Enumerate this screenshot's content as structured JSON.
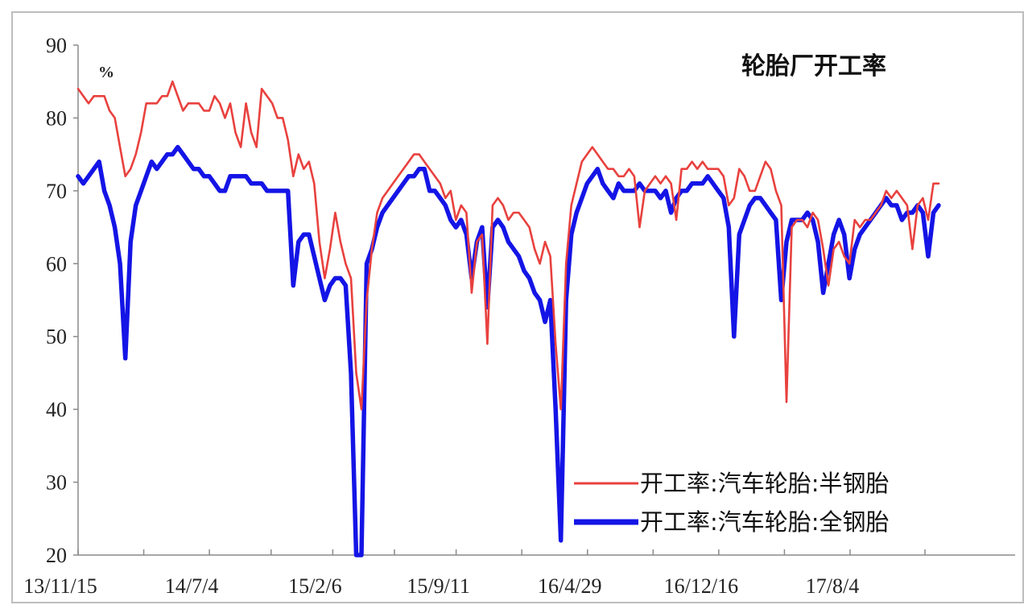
{
  "chart_data": {
    "type": "line",
    "title": "轮胎厂开工率",
    "ylabel": "%",
    "xlabel": "",
    "ylim": [
      20,
      90
    ],
    "yticks": [
      20,
      30,
      40,
      50,
      60,
      70,
      80,
      90
    ],
    "x_tick_labels": [
      "13/11/15",
      "14/7/4",
      "15/2/6",
      "15/9/11",
      "16/4/29",
      "16/12/16",
      "17/8/4"
    ],
    "x_tick_weeks": [
      0,
      33,
      64,
      95,
      128,
      161,
      194
    ],
    "grid": false,
    "legend_position": "bottom-right",
    "series": [
      {
        "name": "开工率:汽车轮胎:半钢胎",
        "color": "#e8413e",
        "points": [
          [
            0,
            84
          ],
          [
            1,
            83
          ],
          [
            2,
            82
          ],
          [
            3,
            83
          ],
          [
            4,
            83
          ],
          [
            5,
            83
          ],
          [
            6,
            81
          ],
          [
            7,
            80
          ],
          [
            8,
            76
          ],
          [
            9,
            72
          ],
          [
            10,
            73
          ],
          [
            11,
            75
          ],
          [
            12,
            78
          ],
          [
            13,
            82
          ],
          [
            14,
            82
          ],
          [
            15,
            82
          ],
          [
            16,
            83
          ],
          [
            17,
            83
          ],
          [
            18,
            85
          ],
          [
            19,
            83
          ],
          [
            20,
            81
          ],
          [
            21,
            82
          ],
          [
            22,
            82
          ],
          [
            23,
            82
          ],
          [
            24,
            81
          ],
          [
            25,
            81
          ],
          [
            26,
            83
          ],
          [
            27,
            82
          ],
          [
            28,
            80
          ],
          [
            29,
            82
          ],
          [
            30,
            78
          ],
          [
            31,
            76
          ],
          [
            32,
            82
          ],
          [
            33,
            78
          ],
          [
            34,
            76
          ],
          [
            35,
            84
          ],
          [
            36,
            83
          ],
          [
            37,
            82
          ],
          [
            38,
            80
          ],
          [
            39,
            80
          ],
          [
            40,
            77
          ],
          [
            41,
            72
          ],
          [
            42,
            75
          ],
          [
            43,
            73
          ],
          [
            44,
            74
          ],
          [
            45,
            71
          ],
          [
            46,
            63
          ],
          [
            47,
            58
          ],
          [
            48,
            62
          ],
          [
            49,
            67
          ],
          [
            50,
            63
          ],
          [
            51,
            60
          ],
          [
            52,
            58
          ],
          [
            53,
            45
          ],
          [
            54,
            40
          ],
          [
            55,
            55
          ],
          [
            56,
            62
          ],
          [
            57,
            67
          ],
          [
            58,
            69
          ],
          [
            59,
            70
          ],
          [
            60,
            71
          ],
          [
            61,
            72
          ],
          [
            62,
            73
          ],
          [
            63,
            74
          ],
          [
            64,
            75
          ],
          [
            65,
            75
          ],
          [
            66,
            74
          ],
          [
            67,
            73
          ],
          [
            68,
            72
          ],
          [
            69,
            71
          ],
          [
            70,
            69
          ],
          [
            71,
            70
          ],
          [
            72,
            66
          ],
          [
            73,
            68
          ],
          [
            74,
            67
          ],
          [
            75,
            56
          ],
          [
            76,
            63
          ],
          [
            77,
            64
          ],
          [
            78,
            49
          ],
          [
            79,
            68
          ],
          [
            80,
            69
          ],
          [
            81,
            68
          ],
          [
            82,
            66
          ],
          [
            83,
            67
          ],
          [
            84,
            67
          ],
          [
            85,
            66
          ],
          [
            86,
            65
          ],
          [
            87,
            62
          ],
          [
            88,
            60
          ],
          [
            89,
            63
          ],
          [
            90,
            61
          ],
          [
            91,
            49
          ],
          [
            92,
            40
          ],
          [
            93,
            60
          ],
          [
            94,
            68
          ],
          [
            95,
            71
          ],
          [
            96,
            74
          ],
          [
            97,
            75
          ],
          [
            98,
            76
          ],
          [
            99,
            75
          ],
          [
            100,
            74
          ],
          [
            101,
            73
          ],
          [
            102,
            73
          ],
          [
            103,
            72
          ],
          [
            104,
            72
          ],
          [
            105,
            73
          ],
          [
            106,
            72
          ],
          [
            107,
            65
          ],
          [
            108,
            70
          ],
          [
            109,
            71
          ],
          [
            110,
            72
          ],
          [
            111,
            71
          ],
          [
            112,
            72
          ],
          [
            113,
            71
          ],
          [
            114,
            66
          ],
          [
            115,
            73
          ],
          [
            116,
            73
          ],
          [
            117,
            74
          ],
          [
            118,
            73
          ],
          [
            119,
            74
          ],
          [
            120,
            73
          ],
          [
            121,
            73
          ],
          [
            122,
            73
          ],
          [
            123,
            72
          ],
          [
            124,
            68
          ],
          [
            125,
            69
          ],
          [
            126,
            73
          ],
          [
            127,
            72
          ],
          [
            128,
            70
          ],
          [
            129,
            70
          ],
          [
            130,
            72
          ],
          [
            131,
            74
          ],
          [
            132,
            73
          ],
          [
            133,
            70
          ],
          [
            134,
            68
          ],
          [
            135,
            41
          ],
          [
            136,
            65
          ],
          [
            137,
            66
          ],
          [
            138,
            66
          ],
          [
            139,
            65
          ],
          [
            140,
            67
          ],
          [
            141,
            66
          ],
          [
            142,
            62
          ],
          [
            143,
            57
          ],
          [
            144,
            62
          ],
          [
            145,
            63
          ],
          [
            146,
            61
          ],
          [
            147,
            60
          ],
          [
            148,
            66
          ],
          [
            149,
            65
          ],
          [
            150,
            66
          ],
          [
            151,
            66
          ],
          [
            152,
            67
          ],
          [
            153,
            68
          ],
          [
            154,
            70
          ],
          [
            155,
            69
          ],
          [
            156,
            70
          ],
          [
            157,
            69
          ],
          [
            158,
            68
          ],
          [
            159,
            62
          ],
          [
            160,
            68
          ],
          [
            161,
            69
          ],
          [
            162,
            66
          ],
          [
            163,
            71
          ],
          [
            164,
            71
          ]
        ]
      },
      {
        "name": "开工率:汽车轮胎:全钢胎",
        "color": "#1414e6",
        "points": [
          [
            0,
            72
          ],
          [
            1,
            71
          ],
          [
            2,
            72
          ],
          [
            3,
            73
          ],
          [
            4,
            74
          ],
          [
            5,
            70
          ],
          [
            6,
            68
          ],
          [
            7,
            65
          ],
          [
            8,
            60
          ],
          [
            9,
            47
          ],
          [
            10,
            63
          ],
          [
            11,
            68
          ],
          [
            12,
            70
          ],
          [
            13,
            72
          ],
          [
            14,
            74
          ],
          [
            15,
            73
          ],
          [
            16,
            74
          ],
          [
            17,
            75
          ],
          [
            18,
            75
          ],
          [
            19,
            76
          ],
          [
            20,
            75
          ],
          [
            21,
            74
          ],
          [
            22,
            73
          ],
          [
            23,
            73
          ],
          [
            24,
            72
          ],
          [
            25,
            72
          ],
          [
            26,
            71
          ],
          [
            27,
            70
          ],
          [
            28,
            70
          ],
          [
            29,
            72
          ],
          [
            30,
            72
          ],
          [
            31,
            72
          ],
          [
            32,
            72
          ],
          [
            33,
            71
          ],
          [
            34,
            71
          ],
          [
            35,
            71
          ],
          [
            36,
            70
          ],
          [
            37,
            70
          ],
          [
            38,
            70
          ],
          [
            39,
            70
          ],
          [
            40,
            70
          ],
          [
            41,
            57
          ],
          [
            42,
            63
          ],
          [
            43,
            64
          ],
          [
            44,
            64
          ],
          [
            45,
            61
          ],
          [
            46,
            58
          ],
          [
            47,
            55
          ],
          [
            48,
            57
          ],
          [
            49,
            58
          ],
          [
            50,
            58
          ],
          [
            51,
            57
          ],
          [
            52,
            45
          ],
          [
            53,
            20
          ],
          [
            54,
            20
          ],
          [
            55,
            60
          ],
          [
            56,
            62
          ],
          [
            57,
            65
          ],
          [
            58,
            67
          ],
          [
            59,
            68
          ],
          [
            60,
            69
          ],
          [
            61,
            70
          ],
          [
            62,
            71
          ],
          [
            63,
            72
          ],
          [
            64,
            72
          ],
          [
            65,
            73
          ],
          [
            66,
            73
          ],
          [
            67,
            70
          ],
          [
            68,
            70
          ],
          [
            69,
            69
          ],
          [
            70,
            68
          ],
          [
            71,
            66
          ],
          [
            72,
            65
          ],
          [
            73,
            66
          ],
          [
            74,
            64
          ],
          [
            75,
            58
          ],
          [
            76,
            63
          ],
          [
            77,
            65
          ],
          [
            78,
            54
          ],
          [
            79,
            65
          ],
          [
            80,
            66
          ],
          [
            81,
            65
          ],
          [
            82,
            63
          ],
          [
            83,
            62
          ],
          [
            84,
            61
          ],
          [
            85,
            59
          ],
          [
            86,
            58
          ],
          [
            87,
            56
          ],
          [
            88,
            55
          ],
          [
            89,
            52
          ],
          [
            90,
            55
          ],
          [
            91,
            40
          ],
          [
            92,
            22
          ],
          [
            93,
            55
          ],
          [
            94,
            64
          ],
          [
            95,
            67
          ],
          [
            96,
            69
          ],
          [
            97,
            71
          ],
          [
            98,
            72
          ],
          [
            99,
            73
          ],
          [
            100,
            71
          ],
          [
            101,
            70
          ],
          [
            102,
            69
          ],
          [
            103,
            71
          ],
          [
            104,
            70
          ],
          [
            105,
            70
          ],
          [
            106,
            70
          ],
          [
            107,
            71
          ],
          [
            108,
            70
          ],
          [
            109,
            70
          ],
          [
            110,
            70
          ],
          [
            111,
            69
          ],
          [
            112,
            70
          ],
          [
            113,
            67
          ],
          [
            114,
            69
          ],
          [
            115,
            70
          ],
          [
            116,
            70
          ],
          [
            117,
            71
          ],
          [
            118,
            71
          ],
          [
            119,
            71
          ],
          [
            120,
            72
          ],
          [
            121,
            71
          ],
          [
            122,
            70
          ],
          [
            123,
            69
          ],
          [
            124,
            65
          ],
          [
            125,
            50
          ],
          [
            126,
            64
          ],
          [
            127,
            66
          ],
          [
            128,
            68
          ],
          [
            129,
            69
          ],
          [
            130,
            69
          ],
          [
            131,
            68
          ],
          [
            132,
            67
          ],
          [
            133,
            66
          ],
          [
            134,
            55
          ],
          [
            135,
            63
          ],
          [
            136,
            66
          ],
          [
            137,
            66
          ],
          [
            138,
            66
          ],
          [
            139,
            67
          ],
          [
            140,
            66
          ],
          [
            141,
            63
          ],
          [
            142,
            56
          ],
          [
            143,
            60
          ],
          [
            144,
            64
          ],
          [
            145,
            66
          ],
          [
            146,
            64
          ],
          [
            147,
            58
          ],
          [
            148,
            62
          ],
          [
            149,
            64
          ],
          [
            150,
            65
          ],
          [
            151,
            66
          ],
          [
            152,
            67
          ],
          [
            153,
            68
          ],
          [
            154,
            69
          ],
          [
            155,
            68
          ],
          [
            156,
            68
          ],
          [
            157,
            66
          ],
          [
            158,
            67
          ],
          [
            159,
            67
          ],
          [
            160,
            68
          ],
          [
            161,
            67
          ],
          [
            162,
            61
          ],
          [
            163,
            67
          ],
          [
            164,
            68
          ]
        ]
      }
    ]
  }
}
